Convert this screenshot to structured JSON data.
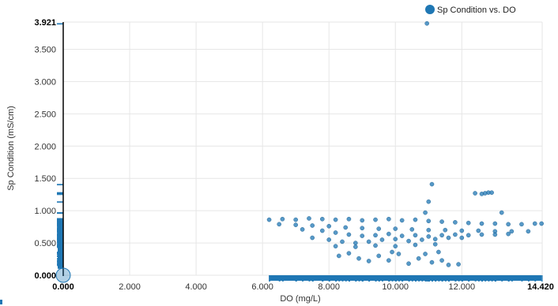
{
  "chart_data": {
    "type": "scatter",
    "title": "",
    "xlabel": "DO (mg/L)",
    "ylabel": "Sp Condition (mS/cm)",
    "xlim": [
      0.0,
      14.42
    ],
    "ylim": [
      0.0,
      3.921
    ],
    "grid": true,
    "legend_position": "top-right",
    "x_tick_labels": [
      "0.000",
      "2.000",
      "4.000",
      "6.000",
      "8.000",
      "10.000",
      "12.000",
      "14.420"
    ],
    "y_tick_labels": [
      "0.000",
      "0.500",
      "1.000",
      "1.500",
      "2.000",
      "2.500",
      "3.000",
      "3.500",
      "3.921"
    ],
    "series": [
      {
        "name": "Sp Condition vs. DO",
        "color": "#1f77b4",
        "points": [
          [
            6.2,
            0.86
          ],
          [
            6.6,
            0.87
          ],
          [
            7.0,
            0.86
          ],
          [
            7.4,
            0.88
          ],
          [
            7.8,
            0.87
          ],
          [
            8.2,
            0.86
          ],
          [
            8.6,
            0.87
          ],
          [
            9.0,
            0.85
          ],
          [
            9.4,
            0.86
          ],
          [
            9.8,
            0.87
          ],
          [
            10.2,
            0.85
          ],
          [
            10.6,
            0.86
          ],
          [
            11.0,
            0.84
          ],
          [
            11.4,
            0.83
          ],
          [
            11.8,
            0.82
          ],
          [
            12.2,
            0.81
          ],
          [
            12.6,
            0.8
          ],
          [
            13.0,
            0.8
          ],
          [
            13.4,
            0.79
          ],
          [
            13.8,
            0.79
          ],
          [
            14.2,
            0.8
          ],
          [
            14.4,
            0.8
          ],
          [
            6.5,
            0.79
          ],
          [
            7.0,
            0.78
          ],
          [
            7.5,
            0.77
          ],
          [
            8.0,
            0.76
          ],
          [
            8.5,
            0.74
          ],
          [
            9.0,
            0.73
          ],
          [
            9.5,
            0.72
          ],
          [
            10.0,
            0.72
          ],
          [
            10.5,
            0.71
          ],
          [
            11.0,
            0.7
          ],
          [
            11.5,
            0.7
          ],
          [
            12.0,
            0.69
          ],
          [
            12.5,
            0.69
          ],
          [
            13.0,
            0.68
          ],
          [
            13.5,
            0.68
          ],
          [
            14.0,
            0.68
          ],
          [
            7.2,
            0.71
          ],
          [
            7.8,
            0.69
          ],
          [
            8.2,
            0.66
          ],
          [
            8.6,
            0.63
          ],
          [
            9.0,
            0.61
          ],
          [
            9.4,
            0.62
          ],
          [
            9.8,
            0.64
          ],
          [
            10.2,
            0.61
          ],
          [
            10.6,
            0.62
          ],
          [
            11.0,
            0.6
          ],
          [
            11.4,
            0.62
          ],
          [
            11.8,
            0.63
          ],
          [
            12.2,
            0.62
          ],
          [
            12.6,
            0.63
          ],
          [
            13.0,
            0.63
          ],
          [
            13.4,
            0.64
          ],
          [
            7.5,
            0.58
          ],
          [
            8.0,
            0.55
          ],
          [
            8.4,
            0.52
          ],
          [
            8.8,
            0.5
          ],
          [
            9.2,
            0.52
          ],
          [
            9.6,
            0.55
          ],
          [
            10.0,
            0.56
          ],
          [
            10.4,
            0.53
          ],
          [
            10.8,
            0.55
          ],
          [
            11.2,
            0.56
          ],
          [
            11.6,
            0.58
          ],
          [
            12.0,
            0.58
          ],
          [
            8.2,
            0.45
          ],
          [
            8.8,
            0.44
          ],
          [
            9.4,
            0.46
          ],
          [
            10.0,
            0.45
          ],
          [
            10.6,
            0.47
          ],
          [
            11.2,
            0.48
          ],
          [
            8.3,
            0.3
          ],
          [
            8.6,
            0.34
          ],
          [
            8.9,
            0.26
          ],
          [
            9.2,
            0.22
          ],
          [
            9.5,
            0.3
          ],
          [
            9.8,
            0.23
          ],
          [
            10.1,
            0.33
          ],
          [
            10.4,
            0.18
          ],
          [
            10.7,
            0.26
          ],
          [
            10.9,
            0.33
          ],
          [
            11.1,
            0.2
          ],
          [
            11.4,
            0.23
          ],
          [
            11.6,
            0.16
          ],
          [
            11.9,
            0.17
          ],
          [
            9.9,
            0.36
          ],
          [
            11.3,
            0.36
          ],
          [
            10.9,
            0.97
          ],
          [
            11.1,
            1.41
          ],
          [
            11.0,
            1.14
          ],
          [
            12.6,
            1.26
          ],
          [
            12.8,
            1.28
          ],
          [
            12.9,
            1.28
          ],
          [
            12.4,
            1.27
          ],
          [
            12.7,
            1.27
          ],
          [
            13.2,
            0.97
          ],
          [
            10.95,
            3.9
          ]
        ]
      }
    ]
  }
}
